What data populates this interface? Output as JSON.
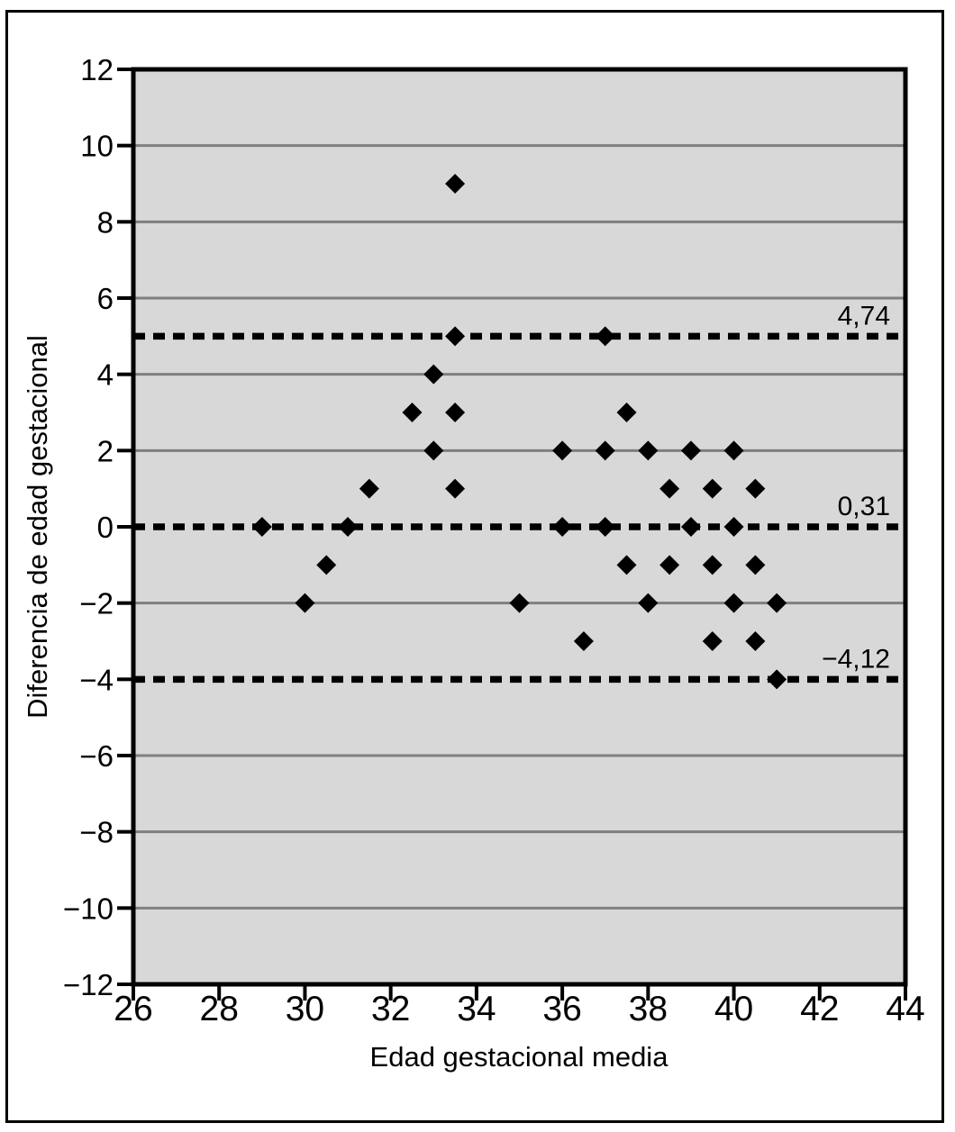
{
  "chart_data": {
    "type": "scatter",
    "title": "",
    "xlabel": "Edad gestacional media",
    "ylabel": "Diferencia de edad gestacional",
    "xlim": [
      26,
      44
    ],
    "ylim": [
      -12,
      12
    ],
    "x_ticks": [
      26,
      28,
      30,
      32,
      34,
      36,
      38,
      40,
      42,
      44
    ],
    "x_tick_labels": [
      "26",
      "28",
      "30",
      "32",
      "34",
      "36",
      "38",
      "40",
      "42",
      "44"
    ],
    "y_ticks": [
      12,
      10,
      8,
      6,
      4,
      2,
      0,
      -2,
      -4,
      -6,
      -8,
      -10,
      -12
    ],
    "y_tick_labels": [
      "12",
      "10",
      "8",
      "6",
      "4",
      "2",
      "0",
      "−2",
      "−4",
      "−6",
      "−8",
      "−10",
      "−12"
    ],
    "gridline_values": [
      10,
      8,
      6,
      4,
      2,
      -2,
      -6,
      -8,
      -10
    ],
    "grid": "horizontal-major",
    "legend": null,
    "marker_shape": "diamond",
    "points": [
      [
        29,
        0
      ],
      [
        30,
        -2
      ],
      [
        30.5,
        -1
      ],
      [
        31,
        0
      ],
      [
        31.5,
        1
      ],
      [
        32.5,
        3
      ],
      [
        33,
        2
      ],
      [
        33,
        4
      ],
      [
        33.5,
        1
      ],
      [
        33.5,
        3
      ],
      [
        33.5,
        5
      ],
      [
        33.5,
        9
      ],
      [
        35,
        -2
      ],
      [
        36,
        0
      ],
      [
        36,
        2
      ],
      [
        36.5,
        -3
      ],
      [
        37,
        0
      ],
      [
        37,
        2
      ],
      [
        37,
        5
      ],
      [
        37.5,
        -1
      ],
      [
        37.5,
        3
      ],
      [
        38,
        -2
      ],
      [
        38,
        2
      ],
      [
        38.5,
        -1
      ],
      [
        38.5,
        1
      ],
      [
        39,
        0
      ],
      [
        39,
        2
      ],
      [
        39.5,
        -3
      ],
      [
        39.5,
        -1
      ],
      [
        39.5,
        1
      ],
      [
        40,
        -2
      ],
      [
        40,
        0
      ],
      [
        40,
        2
      ],
      [
        40.5,
        -3
      ],
      [
        40.5,
        -1
      ],
      [
        40.5,
        1
      ],
      [
        41,
        -4
      ],
      [
        41,
        -2
      ]
    ],
    "reference_lines": [
      {
        "label": "4,74",
        "y_drawn": 5,
        "style": "dashed"
      },
      {
        "label": "0,31",
        "y_drawn": 0,
        "style": "dashed"
      },
      {
        "label": "−4,12",
        "y_drawn": -4,
        "style": "dashed"
      }
    ],
    "colors": {
      "plot_background": "#d8d8d8",
      "gridline": "#7f7f7f",
      "axis_frame": "#000000",
      "marker": "#000000",
      "reference_line": "#000000",
      "text": "#000000",
      "figure_background": "#ffffff"
    }
  }
}
